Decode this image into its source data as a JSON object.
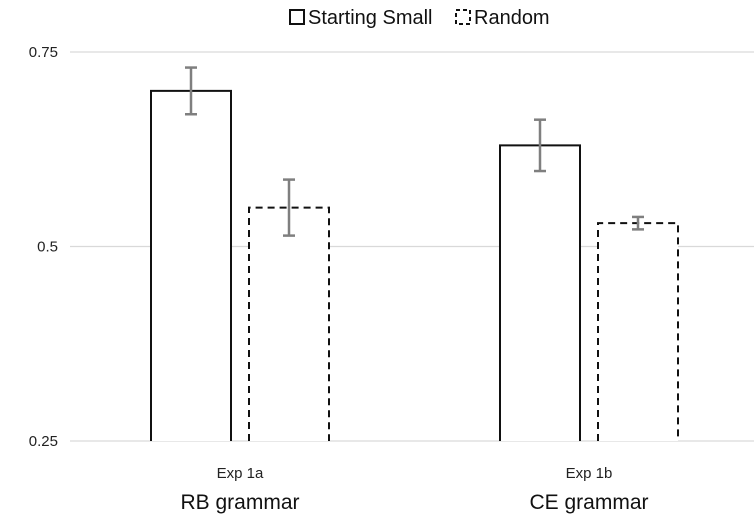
{
  "chart_data": {
    "type": "bar",
    "categories": [
      "Exp 1a",
      "Exp 1b"
    ],
    "category_sublabels": [
      "RB grammar",
      "CE grammar"
    ],
    "series": [
      {
        "name": "Starting Small",
        "values": [
          0.7,
          0.63
        ],
        "error": [
          0.03,
          0.033
        ],
        "line_style": "solid"
      },
      {
        "name": "Random",
        "values": [
          0.55,
          0.53
        ],
        "error": [
          0.036,
          0.008
        ],
        "line_style": "dashed"
      }
    ],
    "ylim": [
      0.25,
      0.75
    ],
    "yticks": [
      0.25,
      0.5,
      0.75
    ],
    "ytick_labels": [
      "0.25",
      "0.5",
      "0.75"
    ],
    "grid": true,
    "legend_position": "top-center",
    "colors": {
      "bar_stroke": "#111111",
      "bar_fill": "#ffffff",
      "error_bar": "#7f7f7f",
      "grid": "#d9d9d9"
    }
  }
}
